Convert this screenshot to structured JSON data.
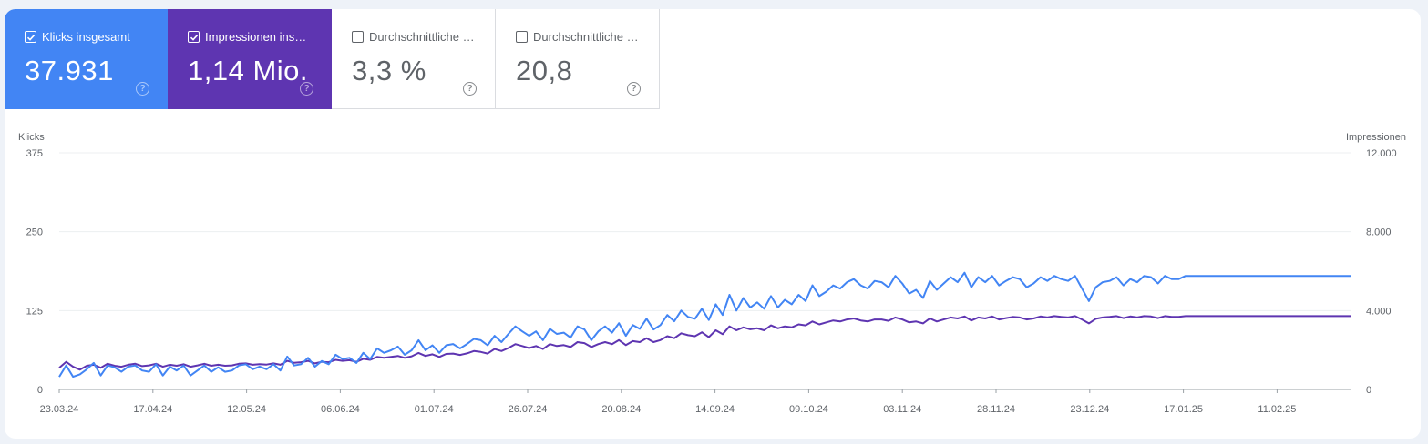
{
  "metrics": [
    {
      "label": "Klicks insgesamt",
      "value": "37.931",
      "checked": true
    },
    {
      "label": "Impressionen ins…",
      "value": "1,14 Mio.",
      "checked": true
    },
    {
      "label": "Durchschnittliche …",
      "value": "3,3 %",
      "checked": false
    },
    {
      "label": "Durchschnittliche …",
      "value": "20,8",
      "checked": false
    }
  ],
  "help_glyph": "?",
  "colors": {
    "clicks": "#4285f4",
    "impressions": "#5e35b1"
  },
  "chart_data": {
    "type": "line",
    "ylabel_left": "Klicks",
    "ylabel_right": "Impressionen",
    "y_left_ticks": [
      "0",
      "125",
      "250",
      "375"
    ],
    "y_right_ticks": [
      "0",
      "4.000",
      "8.000",
      "12.000"
    ],
    "ylim_left": [
      0,
      375
    ],
    "ylim_right": [
      0,
      12000
    ],
    "x_tick_labels": [
      "23.03.24",
      "17.04.24",
      "12.05.24",
      "06.06.24",
      "01.07.24",
      "26.07.24",
      "20.08.24",
      "14.09.24",
      "09.10.24",
      "03.11.24",
      "28.11.24",
      "23.12.24",
      "17.01.25",
      "11.02.25"
    ],
    "x_range": [
      "23.03.24",
      "05.03.25"
    ],
    "grid": true,
    "series": [
      {
        "name": "Klicks",
        "axis": "left",
        "color": "#4285f4",
        "values": [
          20,
          38,
          20,
          24,
          32,
          42,
          22,
          38,
          35,
          28,
          36,
          38,
          30,
          28,
          40,
          22,
          36,
          30,
          38,
          22,
          30,
          38,
          28,
          35,
          28,
          30,
          38,
          40,
          32,
          36,
          32,
          40,
          30,
          52,
          38,
          40,
          50,
          36,
          45,
          40,
          55,
          48,
          50,
          42,
          58,
          48,
          65,
          58,
          62,
          68,
          55,
          62,
          78,
          62,
          70,
          58,
          70,
          72,
          65,
          72,
          80,
          78,
          70,
          85,
          75,
          88,
          100,
          92,
          85,
          92,
          78,
          96,
          88,
          90,
          82,
          100,
          95,
          78,
          92,
          100,
          90,
          105,
          85,
          102,
          96,
          112,
          95,
          102,
          118,
          108,
          125,
          115,
          112,
          128,
          110,
          135,
          118,
          150,
          125,
          145,
          130,
          138,
          128,
          148,
          130,
          142,
          135,
          150,
          140,
          165,
          148,
          155,
          165,
          160,
          170,
          175,
          165,
          160,
          172,
          170,
          162,
          180,
          168,
          152,
          158,
          145,
          172,
          158,
          168,
          178,
          170,
          185,
          162,
          178,
          170,
          180,
          165,
          172,
          178,
          175,
          162,
          168,
          178,
          172,
          180,
          175,
          172,
          180,
          160,
          140,
          162,
          170,
          172,
          178,
          165,
          175,
          170,
          180,
          178,
          168,
          180,
          175,
          175,
          180,
          180,
          180,
          180,
          180,
          180,
          180,
          180,
          180,
          180,
          180,
          180,
          180,
          180,
          180,
          180,
          180,
          180,
          180,
          180,
          180,
          180,
          180,
          180,
          180
        ]
      },
      {
        "name": "Impressionen",
        "axis": "right",
        "color": "#5e35b1",
        "values": [
          1100,
          1400,
          1150,
          1000,
          1200,
          1250,
          1100,
          1300,
          1200,
          1150,
          1250,
          1300,
          1180,
          1220,
          1300,
          1150,
          1250,
          1200,
          1280,
          1150,
          1220,
          1300,
          1200,
          1250,
          1200,
          1220,
          1300,
          1320,
          1250,
          1280,
          1260,
          1320,
          1250,
          1450,
          1350,
          1380,
          1450,
          1320,
          1400,
          1380,
          1500,
          1450,
          1480,
          1400,
          1550,
          1500,
          1650,
          1600,
          1650,
          1700,
          1600,
          1680,
          1850,
          1700,
          1780,
          1650,
          1800,
          1820,
          1750,
          1830,
          1950,
          1900,
          1820,
          2050,
          1950,
          2100,
          2300,
          2200,
          2100,
          2200,
          2050,
          2300,
          2200,
          2250,
          2150,
          2400,
          2350,
          2150,
          2300,
          2400,
          2300,
          2500,
          2250,
          2450,
          2400,
          2600,
          2400,
          2500,
          2700,
          2600,
          2850,
          2750,
          2700,
          2900,
          2650,
          3000,
          2800,
          3200,
          3000,
          3150,
          3050,
          3100,
          3000,
          3250,
          3100,
          3200,
          3150,
          3300,
          3250,
          3450,
          3300,
          3400,
          3500,
          3450,
          3550,
          3600,
          3500,
          3450,
          3550,
          3550,
          3480,
          3650,
          3550,
          3400,
          3450,
          3350,
          3600,
          3450,
          3550,
          3650,
          3600,
          3700,
          3500,
          3650,
          3600,
          3700,
          3550,
          3620,
          3680,
          3650,
          3550,
          3600,
          3700,
          3650,
          3720,
          3680,
          3650,
          3720,
          3550,
          3350,
          3580,
          3650,
          3680,
          3720,
          3620,
          3700,
          3650,
          3720,
          3700,
          3620,
          3720,
          3680,
          3680,
          3720,
          3720,
          3720,
          3720,
          3720,
          3720,
          3720,
          3720,
          3720,
          3720,
          3720,
          3720,
          3720,
          3720,
          3720,
          3720,
          3720,
          3720,
          3720,
          3720,
          3720,
          3720,
          3720,
          3720,
          3720
        ]
      }
    ]
  }
}
